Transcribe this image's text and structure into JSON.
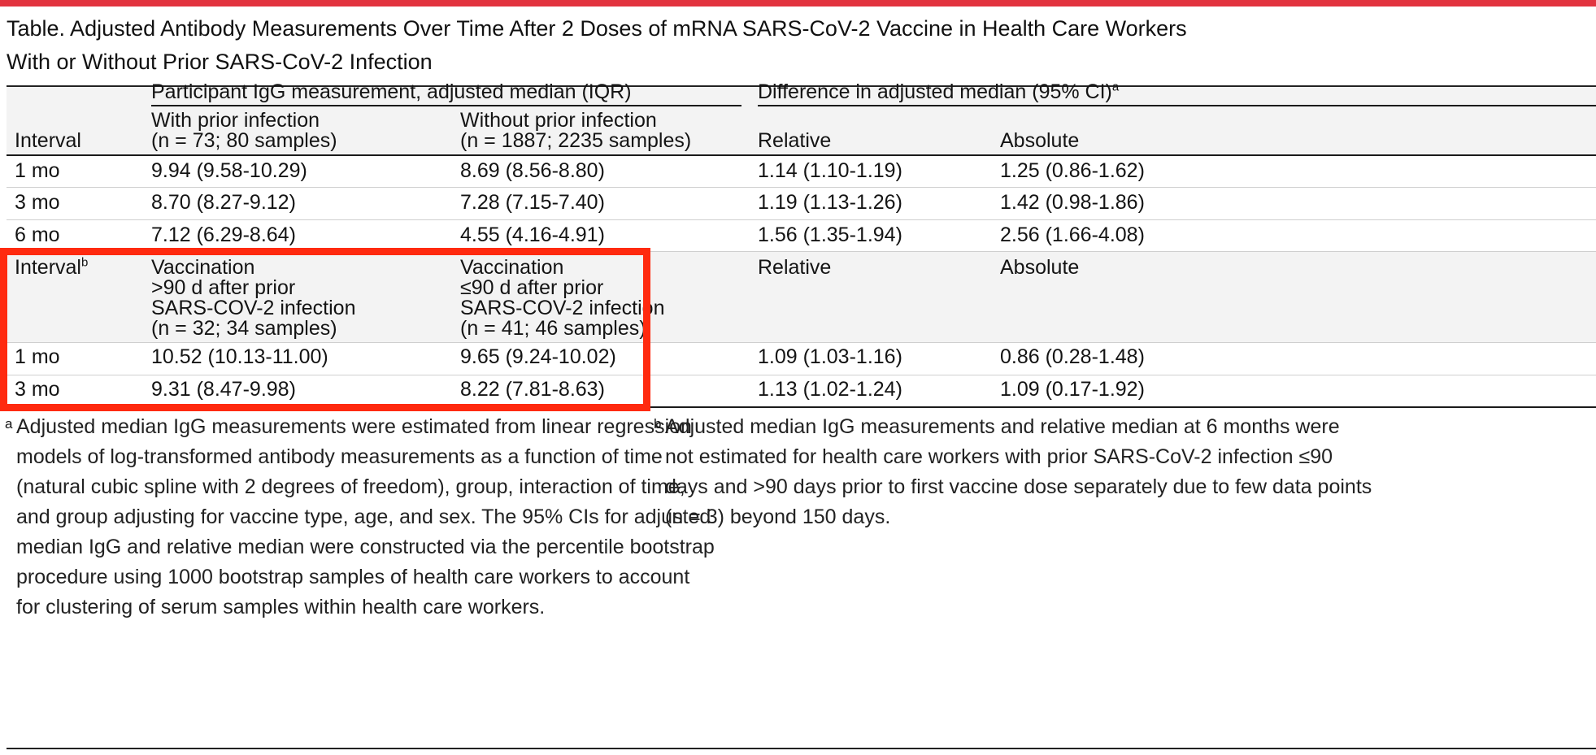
{
  "title": {
    "line1": "Table. Adjusted Antibody Measurements Over Time After 2 Doses of mRNA SARS-CoV-2 Vaccine in Health Care Workers",
    "line2": "With or Without Prior SARS-CoV-2 Infection"
  },
  "header": {
    "group_left": "Participant IgG measurement, adjusted median (IQR)",
    "group_right": "Difference in adjusted median (95% CI)",
    "group_right_sup": "a",
    "interval": "Interval",
    "col_with_1": "With prior infection",
    "col_with_2": "(n = 73; 80 samples)",
    "col_without_1": "Without prior infection",
    "col_without_2": "(n = 1887; 2235 samples)",
    "relative": "Relative",
    "absolute": "Absolute"
  },
  "rows_section1": [
    {
      "interval": "1 mo",
      "with": "9.94 (9.58-10.29)",
      "without": "8.69 (8.56-8.80)",
      "relative": "1.14 (1.10-1.19)",
      "absolute": "1.25 (0.86-1.62)"
    },
    {
      "interval": "3 mo",
      "with": "8.70 (8.27-9.12)",
      "without": "7.28 (7.15-7.40)",
      "relative": "1.19 (1.13-1.26)",
      "absolute": "1.42 (0.98-1.86)"
    },
    {
      "interval": "6 mo",
      "with": "7.12 (6.29-8.64)",
      "without": "4.55 (4.16-4.91)",
      "relative": "1.56 (1.35-1.94)",
      "absolute": "2.56 (1.66-4.08)"
    }
  ],
  "header2": {
    "interval": "Interval",
    "interval_sup": "b",
    "col_a_1": "Vaccination",
    "col_a_2": ">90 d after prior",
    "col_a_3": "SARS-COV-2 infection",
    "col_a_4": "(n = 32; 34 samples)",
    "col_b_1": "Vaccination",
    "col_b_2": "≤90 d after prior",
    "col_b_3": "SARS-COV-2 infection",
    "col_b_4": "(n = 41; 46 samples)",
    "relative": "Relative",
    "absolute": "Absolute"
  },
  "rows_section2": [
    {
      "interval": "1 mo",
      "a": "10.52 (10.13-11.00)",
      "b": "9.65 (9.24-10.02)",
      "relative": "1.09 (1.03-1.16)",
      "absolute": "0.86 (0.28-1.48)"
    },
    {
      "interval": "3 mo",
      "a": "9.31 (8.47-9.98)",
      "b": "8.22 (7.81-8.63)",
      "relative": "1.13 (1.02-1.24)",
      "absolute": "1.09 (0.17-1.92)"
    }
  ],
  "footnotes": {
    "a_mark": "a",
    "a_lines": [
      "Adjusted median IgG measurements were estimated from linear regression",
      "models of log-transformed antibody measurements as a function of time",
      "(natural cubic spline with 2 degrees of freedom), group, interaction of time,",
      "and group adjusting for vaccine type, age, and sex. The 95% CIs for adjusted",
      "median IgG and relative median were constructed via the percentile bootstrap",
      "procedure using 1000 bootstrap samples of health care workers to account",
      "for clustering of serum samples within health care workers."
    ],
    "b_mark": "b",
    "b_lines": [
      "Adjusted median IgG measurements and relative median at 6 months were",
      "not estimated for health care workers with prior SARS-CoV-2 infection ≤90",
      "days and >90 days prior to first vaccine dose separately due to few data points",
      "(n = 3) beyond 150 days."
    ]
  },
  "colors": {
    "accent_bar": "#e2333f",
    "highlight_box": "#ff2a0f",
    "shade": "#f3f3f3"
  }
}
